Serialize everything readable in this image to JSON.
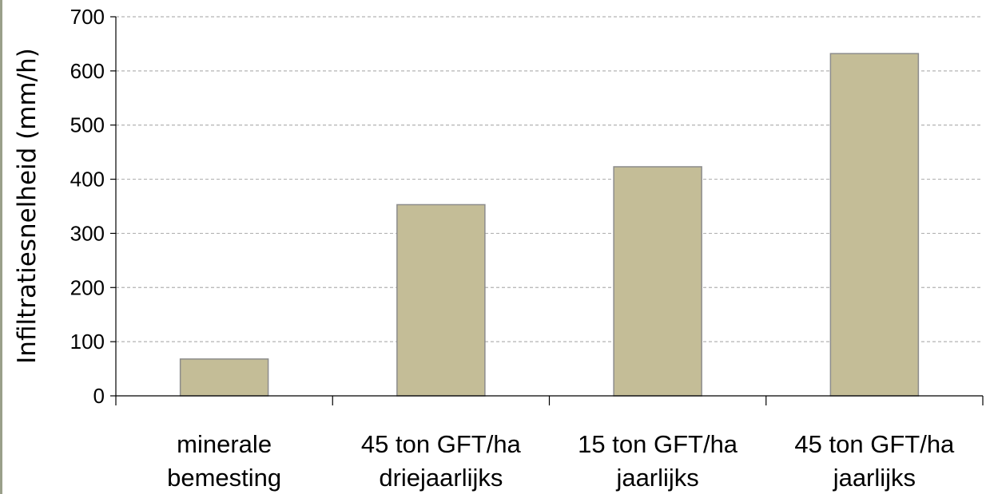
{
  "chart_data": {
    "type": "bar",
    "title": "",
    "xlabel": "",
    "ylabel": "Infiltratiesnelheid (mm/h)",
    "categories": [
      [
        "minerale",
        "bemesting"
      ],
      [
        "45 ton GFT/ha",
        "driejaarlijks"
      ],
      [
        "15 ton GFT/ha",
        "jaarlijks"
      ],
      [
        "45 ton GFT/ha",
        "jaarlijks"
      ]
    ],
    "values": [
      68,
      353,
      423,
      632
    ],
    "ylim": [
      0,
      700
    ],
    "yticks": [
      0,
      100,
      200,
      300,
      400,
      500,
      600,
      700
    ],
    "grid": true,
    "bar_color": "#c4bd97",
    "bar_border": "#8c8c8c",
    "grid_color": "#b3b3b3"
  }
}
